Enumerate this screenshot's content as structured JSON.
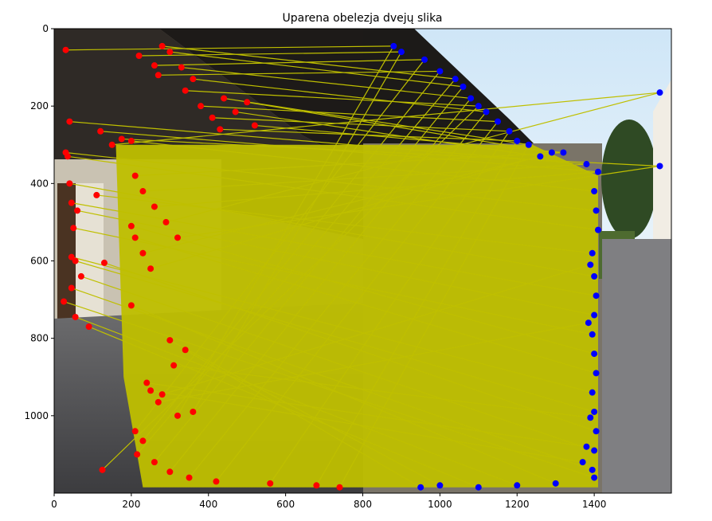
{
  "chart_data": {
    "type": "scatter",
    "title": "Uparena obelezja dvejų slika",
    "xlabel": "",
    "ylabel": "",
    "xlim": [
      0,
      1600
    ],
    "ylim": [
      1200,
      0
    ],
    "y_inverted": true,
    "xticks": [
      0,
      200,
      400,
      600,
      800,
      1000,
      1200,
      1400
    ],
    "yticks": [
      0,
      200,
      400,
      600,
      800,
      1000
    ],
    "grid": false,
    "legend": "none",
    "image_split_x": 800,
    "series": [
      {
        "name": "",
        "color": "#ff0000",
        "role": "left-image-keypoints",
        "points": [
          [
            30,
            55
          ],
          [
            220,
            70
          ],
          [
            260,
            95
          ],
          [
            270,
            120
          ],
          [
            280,
            45
          ],
          [
            300,
            60
          ],
          [
            330,
            100
          ],
          [
            340,
            160
          ],
          [
            360,
            130
          ],
          [
            380,
            200
          ],
          [
            410,
            230
          ],
          [
            430,
            260
          ],
          [
            440,
            180
          ],
          [
            470,
            215
          ],
          [
            500,
            190
          ],
          [
            520,
            250
          ],
          [
            40,
            240
          ],
          [
            120,
            265
          ],
          [
            150,
            300
          ],
          [
            175,
            285
          ],
          [
            200,
            290
          ],
          [
            30,
            320
          ],
          [
            35,
            330
          ],
          [
            110,
            430
          ],
          [
            40,
            400
          ],
          [
            45,
            450
          ],
          [
            60,
            470
          ],
          [
            50,
            515
          ],
          [
            200,
            510
          ],
          [
            210,
            540
          ],
          [
            45,
            590
          ],
          [
            55,
            600
          ],
          [
            130,
            605
          ],
          [
            70,
            640
          ],
          [
            45,
            670
          ],
          [
            25,
            705
          ],
          [
            200,
            715
          ],
          [
            55,
            745
          ],
          [
            90,
            770
          ],
          [
            300,
            805
          ],
          [
            340,
            830
          ],
          [
            310,
            870
          ],
          [
            240,
            915
          ],
          [
            250,
            935
          ],
          [
            280,
            945
          ],
          [
            270,
            965
          ],
          [
            320,
            1000
          ],
          [
            360,
            990
          ],
          [
            210,
            1040
          ],
          [
            230,
            1065
          ],
          [
            215,
            1100
          ],
          [
            260,
            1120
          ],
          [
            300,
            1145
          ],
          [
            125,
            1140
          ],
          [
            350,
            1160
          ],
          [
            420,
            1170
          ],
          [
            560,
            1175
          ],
          [
            680,
            1180
          ],
          [
            740,
            1185
          ],
          [
            230,
            580
          ],
          [
            250,
            620
          ],
          [
            210,
            380
          ],
          [
            230,
            420
          ],
          [
            260,
            460
          ],
          [
            290,
            500
          ],
          [
            320,
            540
          ]
        ]
      },
      {
        "name": "",
        "color": "#0000ff",
        "role": "right-image-keypoints",
        "points": [
          [
            880,
            45
          ],
          [
            900,
            60
          ],
          [
            960,
            80
          ],
          [
            1000,
            110
          ],
          [
            1040,
            130
          ],
          [
            1060,
            150
          ],
          [
            1080,
            180
          ],
          [
            1100,
            200
          ],
          [
            1120,
            215
          ],
          [
            1150,
            240
          ],
          [
            1180,
            265
          ],
          [
            1200,
            290
          ],
          [
            1230,
            300
          ],
          [
            1260,
            330
          ],
          [
            1290,
            320
          ],
          [
            1320,
            320
          ],
          [
            1380,
            350
          ],
          [
            1410,
            370
          ],
          [
            1570,
            165
          ],
          [
            1570,
            355
          ],
          [
            1400,
            420
          ],
          [
            1405,
            470
          ],
          [
            1410,
            520
          ],
          [
            1395,
            580
          ],
          [
            1400,
            640
          ],
          [
            1405,
            690
          ],
          [
            1400,
            740
          ],
          [
            1395,
            790
          ],
          [
            1400,
            840
          ],
          [
            1405,
            890
          ],
          [
            1395,
            940
          ],
          [
            1400,
            990
          ],
          [
            1405,
            1040
          ],
          [
            1400,
            1090
          ],
          [
            1395,
            1140
          ],
          [
            1400,
            1160
          ],
          [
            1300,
            1175
          ],
          [
            1200,
            1180
          ],
          [
            1100,
            1185
          ],
          [
            1000,
            1180
          ],
          [
            950,
            1185
          ],
          [
            1390,
            1005
          ],
          [
            1380,
            1080
          ],
          [
            1370,
            1120
          ],
          [
            1390,
            610
          ],
          [
            1385,
            760
          ]
        ]
      }
    ],
    "match_line_color": "#bfbf00"
  }
}
